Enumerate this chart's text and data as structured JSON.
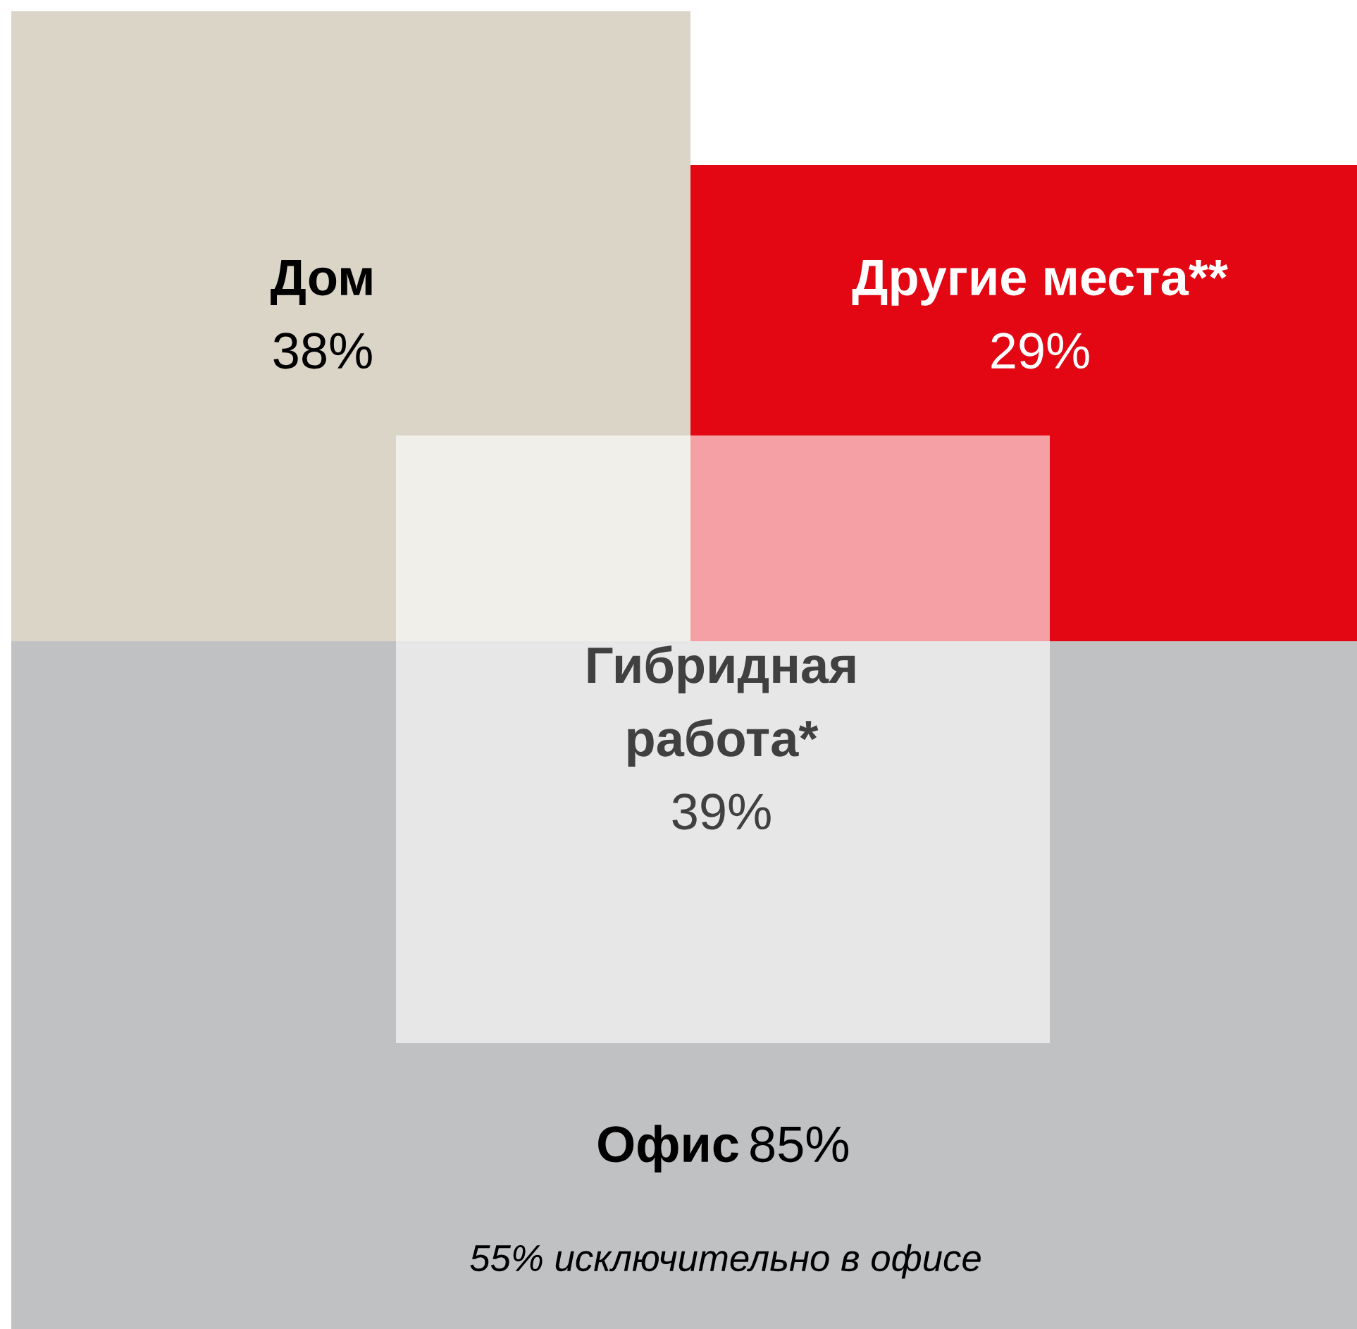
{
  "chart_data": {
    "type": "other",
    "categories": [
      "Дом",
      "Другие места**",
      "Гибридная работа*",
      "Офис"
    ],
    "values": [
      38,
      29,
      39,
      85
    ],
    "value_labels": [
      "38%",
      "29%",
      "39%",
      "85%"
    ],
    "colors": [
      "#dbd5c8",
      "#e30613",
      "#ffffff",
      "#c0c1c3"
    ],
    "annotations": [
      "55% исключительно в офисе"
    ]
  }
}
